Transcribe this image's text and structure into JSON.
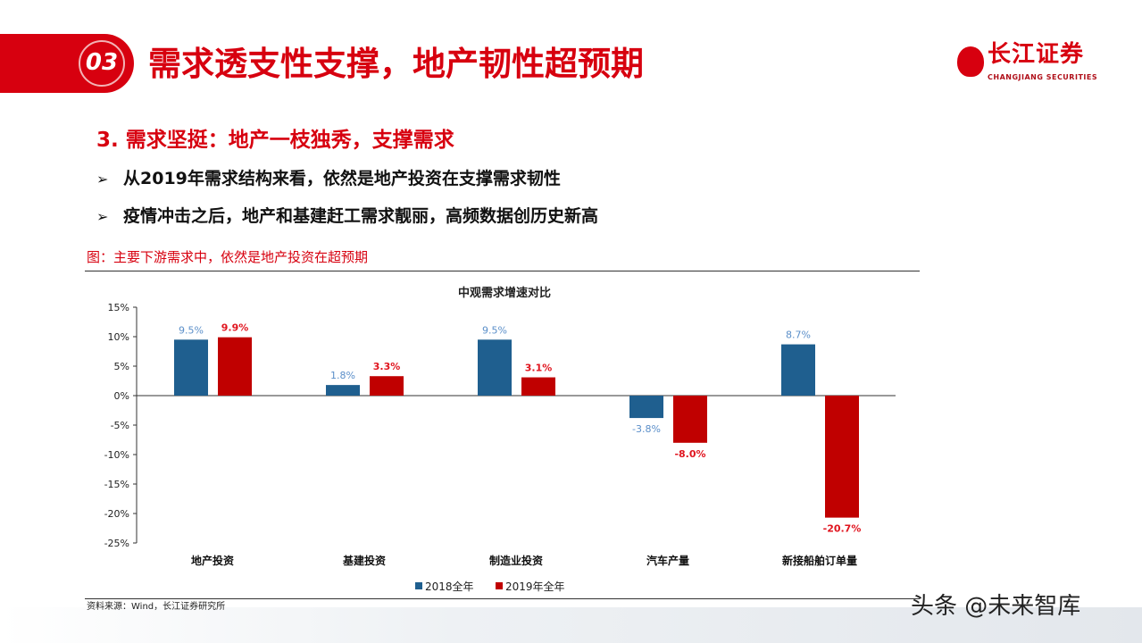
{
  "header": {
    "section_number": "03",
    "title": "需求透支性支撑，地产韧性超预期",
    "logo_cn": "长江证券",
    "logo_en": "CHANGJIANG SECURITIES"
  },
  "subtitle": "3. 需求坚挺：地产一枝独秀，支撑需求",
  "bullets": [
    "从2019年需求结构来看，依然是地产投资在支撑需求韧性",
    "疫情冲击之后，地产和基建赶工需求靓丽，高频数据创历史新高"
  ],
  "bullet_icon": "arrow-right-icon",
  "figure_caption": "图：主要下游需求中，依然是地产投资在超预期",
  "source": "资料来源：Wind，长江证券研究所",
  "watermark": "头条 @未来智库",
  "chart_data": {
    "type": "bar",
    "title": "中观需求增速对比",
    "categories": [
      "地产投资",
      "基建投资",
      "制造业投资",
      "汽车产量",
      "新接船舶订单量"
    ],
    "series": [
      {
        "name": "2018全年",
        "color": "#1f5f8f",
        "label_color": "#5b8fc9",
        "values": [
          9.5,
          1.8,
          9.5,
          -3.8,
          8.7
        ],
        "labels": [
          "9.5%",
          "1.8%",
          "9.5%",
          "-3.8%",
          "8.7%"
        ]
      },
      {
        "name": "2019年全年",
        "color": "#c00000",
        "label_color": "#e0141e",
        "values": [
          9.9,
          3.3,
          3.1,
          -8.0,
          -20.7
        ],
        "labels": [
          "9.9%",
          "3.3%",
          "3.1%",
          "-8.0%",
          "-20.7%"
        ]
      }
    ],
    "yticks": [
      "15%",
      "10%",
      "5%",
      "0%",
      "-5%",
      "-10%",
      "-15%",
      "-20%",
      "-25%"
    ],
    "ylim": [
      -25,
      15
    ],
    "legend": "bottom-center"
  }
}
